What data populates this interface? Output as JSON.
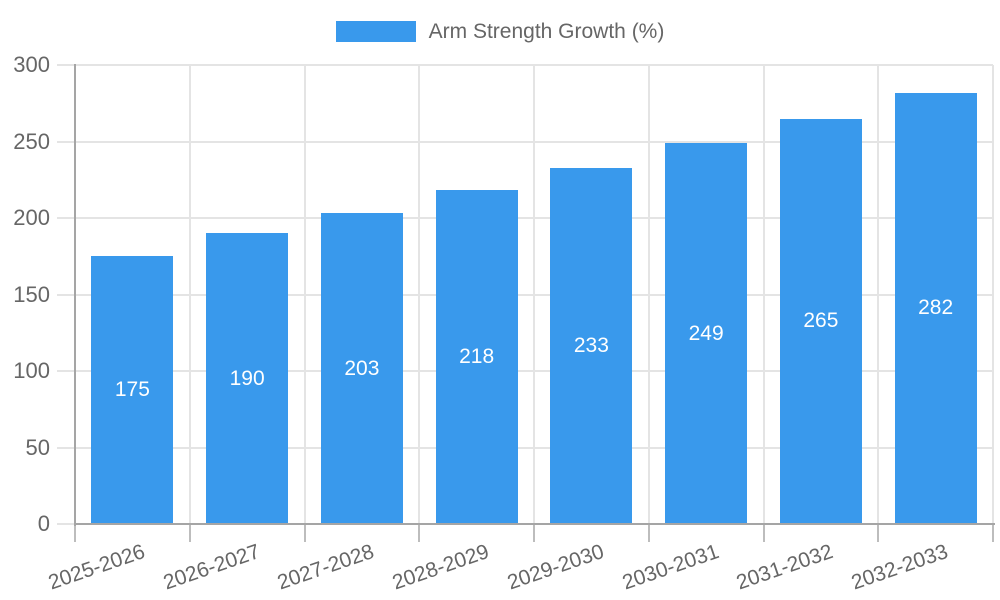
{
  "chart_data": {
    "type": "bar",
    "title": "Arm Strength Growth (%)",
    "legend": [
      "Arm Strength Growth (%)"
    ],
    "legend_position": "top-center",
    "categories": [
      "2025-2026",
      "2026-2027",
      "2027-2028",
      "2028-2029",
      "2029-2030",
      "2030-2031",
      "2031-2032",
      "2032-2033"
    ],
    "values": [
      175,
      190,
      203,
      218,
      233,
      249,
      265,
      282
    ],
    "value_labels_shown": true,
    "xlabel": "",
    "ylabel": "",
    "ylim": [
      0,
      300
    ],
    "yticks": [
      0,
      50,
      100,
      150,
      200,
      250,
      300
    ],
    "grid": "horizontal-and-vertical",
    "x_label_rotation_deg": -19,
    "colors": {
      "bar": "#3999EC",
      "value_label": "#FFFFFF",
      "axis_line": "#A5A5A5",
      "grid_line": "#E4E4E4",
      "tick_line": "#BDBDBD",
      "axis_text": "#666666",
      "legend_text": "#666666",
      "background": "#FFFFFF"
    }
  }
}
